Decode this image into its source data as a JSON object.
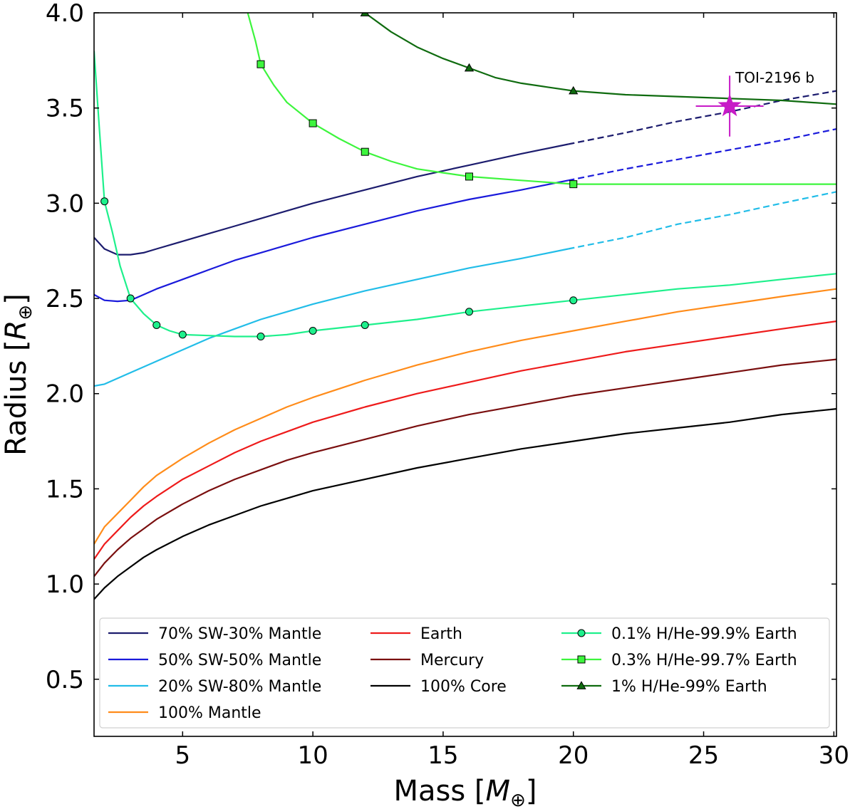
{
  "chart_data": {
    "type": "line",
    "title": "",
    "xlabel": "Mass [",
    "xlabel_symbol": "M",
    "xlabel_sub": "⊕",
    "xlabel_close": "]",
    "ylabel": "Radius [",
    "ylabel_symbol": "R",
    "ylabel_sub": "⊕",
    "ylabel_close": "]",
    "xlim": [
      1.6,
      30.1
    ],
    "ylim": [
      0.2,
      4.0
    ],
    "xticks": [
      5,
      10,
      15,
      20,
      25,
      30
    ],
    "yticks": [
      0.5,
      1.0,
      1.5,
      2.0,
      2.5,
      3.0,
      3.5,
      4.0
    ],
    "xtick_labels": [
      "5",
      "10",
      "15",
      "20",
      "25",
      "30"
    ],
    "ytick_labels": [
      "0.5",
      "1.0",
      "1.5",
      "2.0",
      "2.5",
      "3.0",
      "3.5",
      "4.0"
    ],
    "series": [
      {
        "name": "70% SW-30% Mantle",
        "color": "#1c1c6e",
        "marker": "none",
        "points": [
          [
            1.6,
            2.82
          ],
          [
            2.0,
            2.76
          ],
          [
            2.5,
            2.73
          ],
          [
            3.0,
            2.73
          ],
          [
            3.5,
            2.74
          ],
          [
            4,
            2.76
          ],
          [
            5,
            2.8
          ],
          [
            6,
            2.84
          ],
          [
            7,
            2.88
          ],
          [
            8,
            2.92
          ],
          [
            9,
            2.96
          ],
          [
            10,
            3.0
          ],
          [
            12,
            3.07
          ],
          [
            14,
            3.14
          ],
          [
            16,
            3.2
          ],
          [
            18,
            3.26
          ],
          [
            19.8,
            3.31
          ]
        ],
        "dashed_points": [
          [
            19.8,
            3.31
          ],
          [
            22,
            3.37
          ],
          [
            24,
            3.43
          ],
          [
            26,
            3.48
          ],
          [
            28,
            3.54
          ],
          [
            30.1,
            3.59
          ]
        ]
      },
      {
        "name": "50% SW-50% Mantle",
        "color": "#1a1adb",
        "marker": "none",
        "points": [
          [
            1.6,
            2.52
          ],
          [
            2.0,
            2.49
          ],
          [
            2.5,
            2.485
          ],
          [
            3,
            2.49
          ],
          [
            3.5,
            2.52
          ],
          [
            4,
            2.55
          ],
          [
            5,
            2.6
          ],
          [
            6,
            2.65
          ],
          [
            7,
            2.7
          ],
          [
            8,
            2.74
          ],
          [
            9,
            2.78
          ],
          [
            10,
            2.82
          ],
          [
            12,
            2.89
          ],
          [
            14,
            2.96
          ],
          [
            16,
            3.02
          ],
          [
            18,
            3.07
          ],
          [
            19.8,
            3.12
          ]
        ],
        "dashed_points": [
          [
            19.8,
            3.12
          ],
          [
            22,
            3.18
          ],
          [
            24,
            3.23
          ],
          [
            26,
            3.28
          ],
          [
            28,
            3.33
          ],
          [
            30.1,
            3.39
          ]
        ]
      },
      {
        "name": "20% SW-80% Mantle",
        "color": "#22bde8",
        "marker": "none",
        "points": [
          [
            1.6,
            2.04
          ],
          [
            2.0,
            2.05
          ],
          [
            3,
            2.11
          ],
          [
            4,
            2.17
          ],
          [
            5,
            2.23
          ],
          [
            6,
            2.29
          ],
          [
            7,
            2.34
          ],
          [
            8,
            2.39
          ],
          [
            9,
            2.43
          ],
          [
            10,
            2.47
          ],
          [
            12,
            2.54
          ],
          [
            14,
            2.6
          ],
          [
            16,
            2.66
          ],
          [
            18,
            2.71
          ],
          [
            19.8,
            2.76
          ]
        ],
        "dashed_points": [
          [
            19.8,
            2.76
          ],
          [
            22,
            2.82
          ],
          [
            24,
            2.89
          ],
          [
            26,
            2.94
          ],
          [
            28,
            3.0
          ],
          [
            30.1,
            3.06
          ]
        ]
      },
      {
        "name": "100% Mantle",
        "color": "#ff8c1a",
        "marker": "none",
        "points": [
          [
            1.6,
            1.21
          ],
          [
            2,
            1.3
          ],
          [
            2.5,
            1.37
          ],
          [
            3,
            1.44
          ],
          [
            3.5,
            1.51
          ],
          [
            4,
            1.57
          ],
          [
            5,
            1.66
          ],
          [
            6,
            1.74
          ],
          [
            7,
            1.81
          ],
          [
            8,
            1.87
          ],
          [
            9,
            1.93
          ],
          [
            10,
            1.98
          ],
          [
            12,
            2.07
          ],
          [
            14,
            2.15
          ],
          [
            16,
            2.22
          ],
          [
            18,
            2.28
          ],
          [
            20,
            2.33
          ],
          [
            22,
            2.38
          ],
          [
            24,
            2.43
          ],
          [
            26,
            2.47
          ],
          [
            28,
            2.51
          ],
          [
            30.1,
            2.55
          ]
        ],
        "dashed_points": []
      },
      {
        "name": "Earth",
        "color": "#ee1b1b",
        "marker": "none",
        "points": [
          [
            1.6,
            1.13
          ],
          [
            2,
            1.21
          ],
          [
            2.5,
            1.28
          ],
          [
            3,
            1.35
          ],
          [
            3.5,
            1.41
          ],
          [
            4,
            1.46
          ],
          [
            5,
            1.55
          ],
          [
            6,
            1.62
          ],
          [
            7,
            1.69
          ],
          [
            8,
            1.75
          ],
          [
            9,
            1.8
          ],
          [
            10,
            1.85
          ],
          [
            12,
            1.93
          ],
          [
            14,
            2.0
          ],
          [
            16,
            2.06
          ],
          [
            18,
            2.12
          ],
          [
            20,
            2.17
          ],
          [
            22,
            2.22
          ],
          [
            24,
            2.26
          ],
          [
            26,
            2.3
          ],
          [
            28,
            2.34
          ],
          [
            30.1,
            2.38
          ]
        ],
        "dashed_points": []
      },
      {
        "name": "Mercury",
        "color": "#7a0f0f",
        "marker": "none",
        "points": [
          [
            1.6,
            1.04
          ],
          [
            2,
            1.11
          ],
          [
            2.5,
            1.18
          ],
          [
            3,
            1.24
          ],
          [
            3.5,
            1.29
          ],
          [
            4,
            1.34
          ],
          [
            5,
            1.42
          ],
          [
            6,
            1.49
          ],
          [
            7,
            1.55
          ],
          [
            8,
            1.6
          ],
          [
            9,
            1.65
          ],
          [
            10,
            1.69
          ],
          [
            12,
            1.76
          ],
          [
            14,
            1.83
          ],
          [
            16,
            1.89
          ],
          [
            18,
            1.94
          ],
          [
            20,
            1.99
          ],
          [
            22,
            2.03
          ],
          [
            24,
            2.07
          ],
          [
            26,
            2.11
          ],
          [
            28,
            2.15
          ],
          [
            30.1,
            2.18
          ]
        ],
        "dashed_points": []
      },
      {
        "name": "100% Core",
        "color": "#000000",
        "marker": "none",
        "points": [
          [
            1.6,
            0.92
          ],
          [
            2,
            0.98
          ],
          [
            2.5,
            1.04
          ],
          [
            3,
            1.09
          ],
          [
            3.5,
            1.14
          ],
          [
            4,
            1.18
          ],
          [
            5,
            1.25
          ],
          [
            6,
            1.31
          ],
          [
            7,
            1.36
          ],
          [
            8,
            1.41
          ],
          [
            9,
            1.45
          ],
          [
            10,
            1.49
          ],
          [
            12,
            1.55
          ],
          [
            14,
            1.61
          ],
          [
            16,
            1.66
          ],
          [
            18,
            1.71
          ],
          [
            20,
            1.75
          ],
          [
            22,
            1.79
          ],
          [
            24,
            1.82
          ],
          [
            26,
            1.85
          ],
          [
            28,
            1.89
          ],
          [
            30.1,
            1.92
          ]
        ],
        "dashed_points": []
      },
      {
        "name": "0.1% H/He-99.9% Earth",
        "color": "#1ef08c",
        "marker": "circle",
        "points": [
          [
            1.6,
            3.8
          ],
          [
            1.8,
            3.4
          ],
          [
            2,
            3.01
          ],
          [
            2.3,
            2.85
          ],
          [
            2.6,
            2.67
          ],
          [
            3,
            2.5
          ],
          [
            3.5,
            2.42
          ],
          [
            4,
            2.36
          ],
          [
            4.5,
            2.33
          ],
          [
            5,
            2.31
          ],
          [
            6,
            2.305
          ],
          [
            7,
            2.3
          ],
          [
            8,
            2.3
          ],
          [
            9,
            2.31
          ],
          [
            10,
            2.33
          ],
          [
            11,
            2.345
          ],
          [
            12,
            2.36
          ],
          [
            14,
            2.39
          ],
          [
            16,
            2.43
          ],
          [
            18,
            2.46
          ],
          [
            20,
            2.49
          ],
          [
            22,
            2.52
          ],
          [
            24,
            2.55
          ],
          [
            26,
            2.57
          ],
          [
            28,
            2.6
          ],
          [
            30.1,
            2.63
          ]
        ],
        "marker_points": [
          [
            2,
            3.01
          ],
          [
            3,
            2.5
          ],
          [
            4,
            2.36
          ],
          [
            5,
            2.31
          ],
          [
            8,
            2.3
          ],
          [
            10,
            2.33
          ],
          [
            12,
            2.36
          ],
          [
            16,
            2.43
          ],
          [
            20,
            2.49
          ]
        ],
        "dashed_points": []
      },
      {
        "name": "0.3% H/He-99.7% Earth",
        "color": "#3df53d",
        "marker": "square",
        "points": [
          [
            7.5,
            4.0
          ],
          [
            7.8,
            3.85
          ],
          [
            8,
            3.73
          ],
          [
            8.5,
            3.62
          ],
          [
            9,
            3.53
          ],
          [
            10,
            3.42
          ],
          [
            11,
            3.34
          ],
          [
            12,
            3.27
          ],
          [
            13,
            3.22
          ],
          [
            14,
            3.18
          ],
          [
            15,
            3.16
          ],
          [
            16,
            3.14
          ],
          [
            18,
            3.12
          ],
          [
            20,
            3.1
          ],
          [
            22,
            3.1
          ],
          [
            26,
            3.1
          ],
          [
            30.1,
            3.1
          ]
        ],
        "marker_points": [
          [
            8,
            3.73
          ],
          [
            10,
            3.42
          ],
          [
            12,
            3.27
          ],
          [
            16,
            3.14
          ],
          [
            20,
            3.1
          ]
        ],
        "dashed_points": []
      },
      {
        "name": "1% H/He-99% Earth",
        "color": "#0f6b0f",
        "marker": "triangle",
        "points": [
          [
            12,
            4.0
          ],
          [
            13,
            3.9
          ],
          [
            14,
            3.82
          ],
          [
            15,
            3.76
          ],
          [
            16,
            3.71
          ],
          [
            17,
            3.66
          ],
          [
            18,
            3.63
          ],
          [
            19,
            3.61
          ],
          [
            20,
            3.59
          ],
          [
            22,
            3.57
          ],
          [
            24,
            3.56
          ],
          [
            26,
            3.55
          ],
          [
            28,
            3.54
          ],
          [
            30.1,
            3.52
          ]
        ],
        "marker_points": [
          [
            12,
            4.0
          ],
          [
            16,
            3.71
          ],
          [
            20,
            3.59
          ]
        ],
        "dashed_points": []
      }
    ],
    "planet": {
      "name": "TOI-2196 b",
      "mass": 26.0,
      "radius": 3.51,
      "mass_err": 1.3,
      "radius_err_up": 0.16,
      "radius_err_down": 0.16,
      "color": "#c71ac7",
      "marker": "star"
    },
    "legend_location": "lower-right",
    "legend_columns": [
      [
        "70% SW-30% Mantle",
        "50% SW-50% Mantle",
        "20% SW-80% Mantle",
        "100% Mantle"
      ],
      [
        "Earth",
        "Mercury",
        "100% Core"
      ],
      [
        "0.1% H/He-99.9% Earth",
        "0.3% H/He-99.7% Earth",
        "1% H/He-99% Earth"
      ]
    ]
  }
}
